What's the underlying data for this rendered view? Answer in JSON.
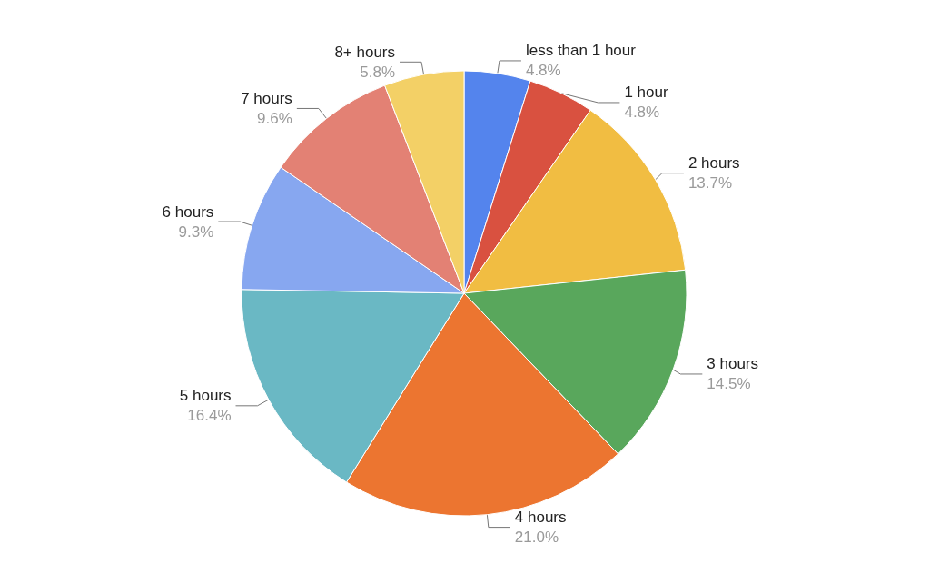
{
  "chart_data": {
    "type": "pie",
    "categories": [
      "less than 1 hour",
      "1 hour",
      "2 hours",
      "3 hours",
      "4 hours",
      "5 hours",
      "6 hours",
      "7 hours",
      "8+ hours"
    ],
    "values": [
      4.8,
      4.8,
      13.7,
      14.5,
      21.0,
      16.4,
      9.3,
      9.6,
      5.8
    ],
    "value_labels": [
      "4.8%",
      "4.8%",
      "13.7%",
      "14.5%",
      "21.0%",
      "16.4%",
      "9.3%",
      "9.6%",
      "5.8%"
    ],
    "colors": [
      "#5484ed",
      "#d95140",
      "#f1bd42",
      "#59a75c",
      "#ec7530",
      "#6ab8c4",
      "#87a7f0",
      "#e38174",
      "#f3d066"
    ],
    "legend": false
  }
}
